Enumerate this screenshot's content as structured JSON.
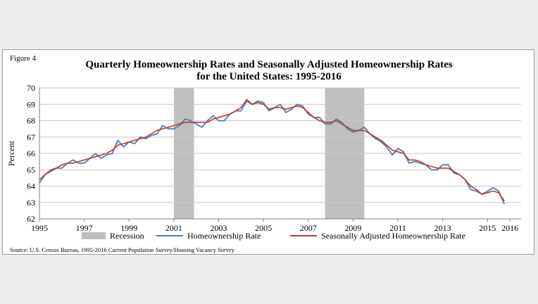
{
  "figure_label": "Figure 4",
  "chart_data": {
    "type": "line",
    "title": "Quarterly Homeownership Rates and Seasonally Adjusted Homeownership Rates",
    "subtitle": "for the United States: 1995-2016",
    "ylabel": "Percent",
    "xlabel": "",
    "ylim": [
      62,
      70
    ],
    "xlim": [
      1995,
      2016.5
    ],
    "y_ticks": [
      62,
      63,
      64,
      65,
      66,
      67,
      68,
      69,
      70
    ],
    "x_ticks": [
      {
        "value": 1995,
        "label": "1995"
      },
      {
        "value": 1997,
        "label": "1997"
      },
      {
        "value": 1999,
        "label": "1999"
      },
      {
        "value": 2001,
        "label": "2001"
      },
      {
        "value": 2003,
        "label": "2003"
      },
      {
        "value": 2005,
        "label": "2005"
      },
      {
        "value": 2007,
        "label": "2007"
      },
      {
        "value": 2009,
        "label": "2009"
      },
      {
        "value": 2011,
        "label": "2011"
      },
      {
        "value": 2013,
        "label": "2013"
      },
      {
        "value": 2015,
        "label": "2015"
      },
      {
        "value": 2016,
        "label": "2016"
      }
    ],
    "grid": true,
    "recessions": [
      {
        "start": 2001.0,
        "end": 2001.9
      },
      {
        "start": 2007.75,
        "end": 2009.5
      }
    ],
    "legend": {
      "placement": "bottom",
      "items": [
        {
          "label": "Recession",
          "kind": "box",
          "color": "#bfbfbf"
        },
        {
          "label": "Homeownership Rate",
          "kind": "line",
          "color": "#4a7ebb"
        },
        {
          "label": "Seasonally Adjusted Homeownership Rate",
          "kind": "line",
          "color": "#c0392b"
        }
      ]
    },
    "x_start": 1995,
    "x_step": 0.25,
    "series": [
      {
        "name": "Homeownership Rate",
        "color": "#4a7ebb",
        "values": [
          64.2,
          64.7,
          65.0,
          65.1,
          65.1,
          65.4,
          65.6,
          65.4,
          65.4,
          65.7,
          66.0,
          65.7,
          65.9,
          66.0,
          66.8,
          66.4,
          66.7,
          66.6,
          67.0,
          66.9,
          67.1,
          67.2,
          67.7,
          67.5,
          67.5,
          67.7,
          68.1,
          68.0,
          67.8,
          67.6,
          68.0,
          68.3,
          68.0,
          68.0,
          68.4,
          68.6,
          68.6,
          69.2,
          69.0,
          69.2,
          69.1,
          68.6,
          68.8,
          69.0,
          68.5,
          68.7,
          69.0,
          68.9,
          68.4,
          68.2,
          68.2,
          67.8,
          67.8,
          68.1,
          67.9,
          67.5,
          67.3,
          67.4,
          67.6,
          67.2,
          66.9,
          66.7,
          66.4,
          65.9,
          66.3,
          66.1,
          65.4,
          65.5,
          65.4,
          65.3,
          65.0,
          65.0,
          65.3,
          65.3,
          64.8,
          64.7,
          64.4,
          63.8,
          63.7,
          63.5,
          63.7,
          63.9,
          63.7,
          62.9
        ]
      },
      {
        "name": "Seasonally Adjusted Homeownership Rate",
        "color": "#c0392b",
        "values": [
          64.4,
          64.7,
          64.9,
          65.1,
          65.3,
          65.4,
          65.4,
          65.5,
          65.6,
          65.7,
          65.8,
          65.9,
          66.0,
          66.2,
          66.5,
          66.6,
          66.7,
          66.8,
          66.9,
          67.0,
          67.2,
          67.4,
          67.5,
          67.6,
          67.7,
          67.8,
          67.9,
          67.9,
          67.9,
          67.9,
          67.9,
          68.1,
          68.2,
          68.3,
          68.4,
          68.6,
          68.8,
          69.3,
          69.0,
          69.1,
          69.0,
          68.7,
          68.8,
          68.8,
          68.7,
          68.8,
          68.9,
          68.8,
          68.5,
          68.2,
          68.0,
          67.9,
          67.9,
          68.0,
          67.8,
          67.6,
          67.4,
          67.4,
          67.4,
          67.2,
          67.0,
          66.8,
          66.5,
          66.2,
          66.1,
          66.0,
          65.6,
          65.6,
          65.5,
          65.3,
          65.2,
          65.1,
          65.1,
          65.1,
          64.9,
          64.7,
          64.4,
          64.0,
          63.8,
          63.5,
          63.6,
          63.7,
          63.6,
          63.1
        ]
      }
    ]
  },
  "source": "Source: U.S. Census Bureau, 1995-2016 Current Population Survey/Housing Vacancy Survey"
}
